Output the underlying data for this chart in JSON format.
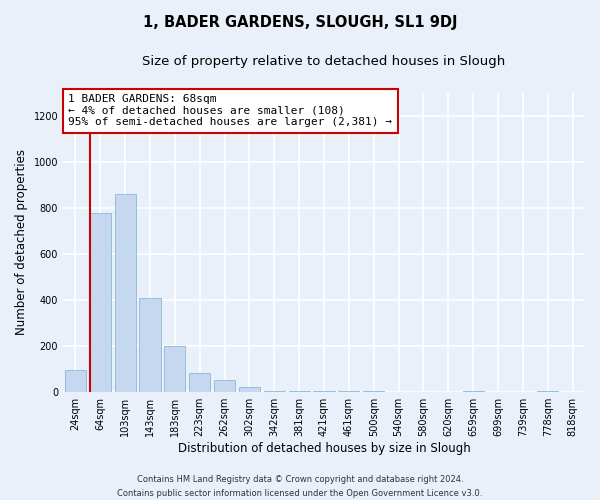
{
  "title": "1, BADER GARDENS, SLOUGH, SL1 9DJ",
  "subtitle": "Size of property relative to detached houses in Slough",
  "xlabel": "Distribution of detached houses by size in Slough",
  "ylabel": "Number of detached properties",
  "bar_labels": [
    "24sqm",
    "64sqm",
    "103sqm",
    "143sqm",
    "183sqm",
    "223sqm",
    "262sqm",
    "302sqm",
    "342sqm",
    "381sqm",
    "421sqm",
    "461sqm",
    "500sqm",
    "540sqm",
    "580sqm",
    "620sqm",
    "659sqm",
    "699sqm",
    "739sqm",
    "778sqm",
    "818sqm"
  ],
  "bar_values": [
    95,
    780,
    860,
    410,
    200,
    85,
    52,
    22,
    5,
    5,
    5,
    5,
    5,
    0,
    0,
    0,
    5,
    0,
    0,
    5,
    0
  ],
  "bar_color": "#c5d8f0",
  "bar_edge_color": "#7aafd4",
  "vline_color": "#cc0000",
  "annotation_text": "1 BADER GARDENS: 68sqm\n← 4% of detached houses are smaller (108)\n95% of semi-detached houses are larger (2,381) →",
  "annotation_box_color": "#ffffff",
  "annotation_box_edge": "#cc0000",
  "ylim": [
    0,
    1300
  ],
  "yticks": [
    0,
    200,
    400,
    600,
    800,
    1000,
    1200
  ],
  "footer_text": "Contains HM Land Registry data © Crown copyright and database right 2024.\nContains public sector information licensed under the Open Government Licence v3.0.",
  "bg_color": "#eaf0f9",
  "plot_bg_color": "#eaf0f9",
  "grid_color": "#ffffff",
  "title_fontsize": 10.5,
  "subtitle_fontsize": 9.5,
  "axis_label_fontsize": 8.5,
  "tick_fontsize": 7,
  "annotation_fontsize": 8,
  "footer_fontsize": 6
}
